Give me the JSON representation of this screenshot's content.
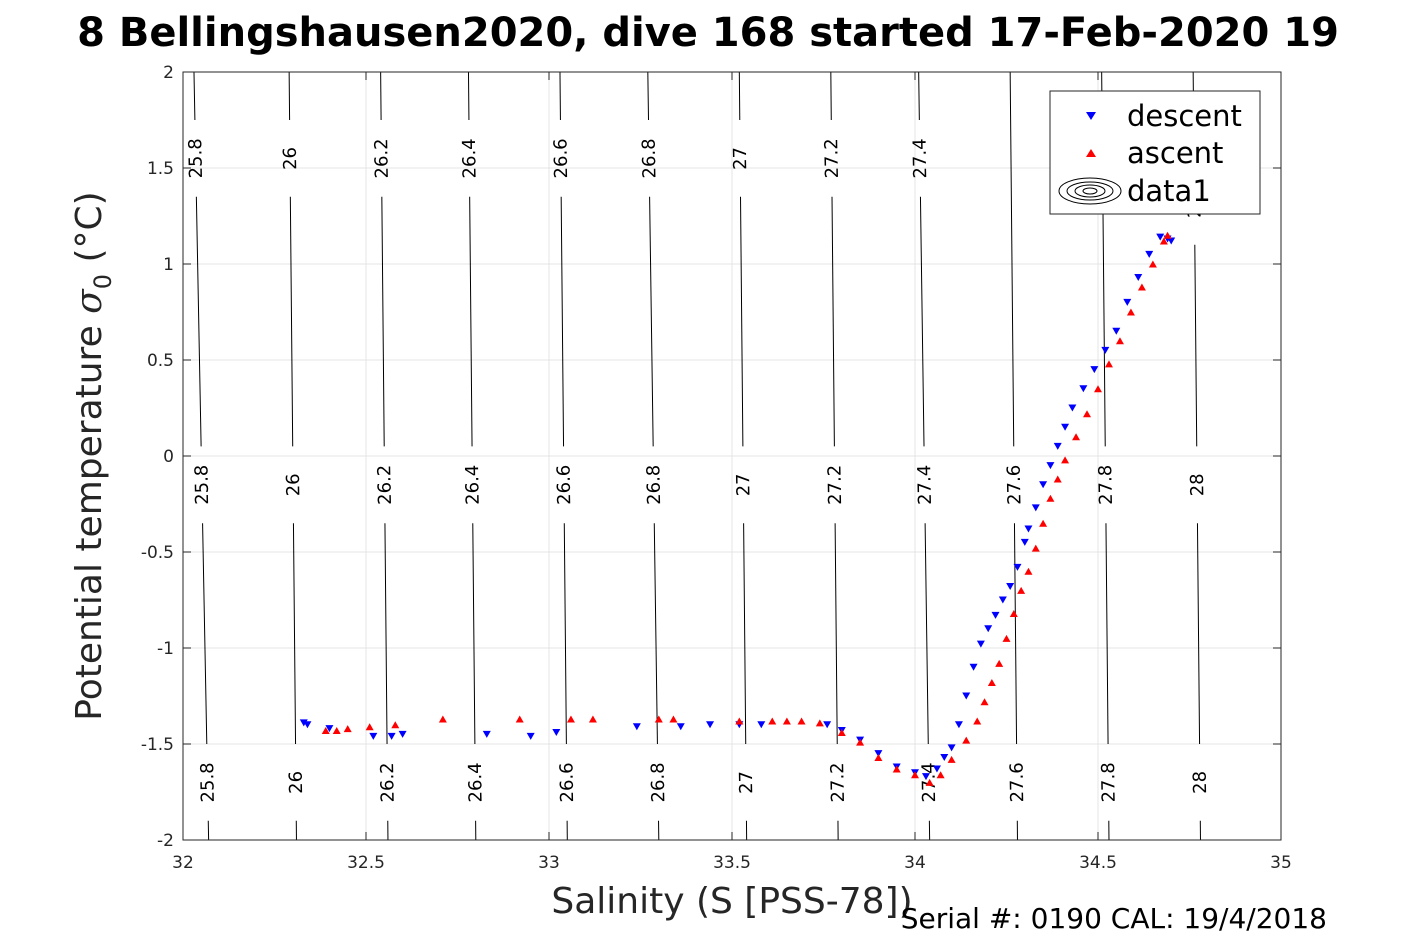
{
  "chart_data": {
    "type": "scatter",
    "title": "8 Bellingshausen2020, dive 168 started 17-Feb-2020 19",
    "xlabel": "Salinity (S [PSS-78])",
    "ylabel": "Potential temperature",
    "ylabel_symbol": "σ",
    "ylabel_subscript": "0",
    "ylabel_unit": "(°C)",
    "xlim": [
      32,
      35
    ],
    "ylim": [
      -2,
      2
    ],
    "xticks": [
      32,
      32.5,
      33,
      33.5,
      34,
      34.5,
      35
    ],
    "yticks": [
      2,
      1.5,
      1,
      0.5,
      0,
      -0.5,
      -1,
      -1.5,
      -2
    ],
    "xtick_labels": [
      "32",
      "32.5",
      "33",
      "33.5",
      "34",
      "34.5",
      "35"
    ],
    "ytick_labels": [
      "2",
      "1.5",
      "1",
      "0.5",
      "0",
      "-0.5",
      "-1",
      "-1.5",
      "-2"
    ],
    "grid": true,
    "legend_position": "top-right",
    "legend": [
      "descent",
      "ascent",
      "data1"
    ],
    "series": [
      {
        "name": "descent",
        "marker": "triangle-down",
        "color": "#0000ff",
        "points": [
          [
            32.33,
            -1.39
          ],
          [
            32.34,
            -1.4
          ],
          [
            32.4,
            -1.42
          ],
          [
            32.52,
            -1.46
          ],
          [
            32.57,
            -1.46
          ],
          [
            32.6,
            -1.45
          ],
          [
            32.83,
            -1.45
          ],
          [
            32.95,
            -1.46
          ],
          [
            33.02,
            -1.44
          ],
          [
            33.24,
            -1.41
          ],
          [
            33.36,
            -1.41
          ],
          [
            33.44,
            -1.4
          ],
          [
            33.52,
            -1.4
          ],
          [
            33.58,
            -1.4
          ],
          [
            33.76,
            -1.4
          ],
          [
            33.8,
            -1.43
          ],
          [
            33.85,
            -1.48
          ],
          [
            33.9,
            -1.55
          ],
          [
            33.95,
            -1.62
          ],
          [
            34.0,
            -1.65
          ],
          [
            34.03,
            -1.67
          ],
          [
            34.06,
            -1.63
          ],
          [
            34.08,
            -1.57
          ],
          [
            34.1,
            -1.52
          ],
          [
            34.12,
            -1.4
          ],
          [
            34.14,
            -1.25
          ],
          [
            34.16,
            -1.1
          ],
          [
            34.18,
            -0.98
          ],
          [
            34.2,
            -0.9
          ],
          [
            34.22,
            -0.83
          ],
          [
            34.24,
            -0.75
          ],
          [
            34.26,
            -0.68
          ],
          [
            34.28,
            -0.58
          ],
          [
            34.3,
            -0.45
          ],
          [
            34.31,
            -0.38
          ],
          [
            34.33,
            -0.27
          ],
          [
            34.35,
            -0.15
          ],
          [
            34.37,
            -0.05
          ],
          [
            34.39,
            0.05
          ],
          [
            34.41,
            0.15
          ],
          [
            34.43,
            0.25
          ],
          [
            34.46,
            0.35
          ],
          [
            34.49,
            0.45
          ],
          [
            34.52,
            0.55
          ],
          [
            34.55,
            0.65
          ],
          [
            34.58,
            0.8
          ],
          [
            34.61,
            0.93
          ],
          [
            34.64,
            1.05
          ],
          [
            34.67,
            1.14
          ],
          [
            34.69,
            1.13
          ],
          [
            34.7,
            1.12
          ]
        ]
      },
      {
        "name": "ascent",
        "marker": "triangle-up",
        "color": "#ff0000",
        "points": [
          [
            32.39,
            -1.43
          ],
          [
            32.42,
            -1.43
          ],
          [
            32.45,
            -1.42
          ],
          [
            32.51,
            -1.41
          ],
          [
            32.58,
            -1.4
          ],
          [
            32.71,
            -1.37
          ],
          [
            32.92,
            -1.37
          ],
          [
            33.06,
            -1.37
          ],
          [
            33.12,
            -1.37
          ],
          [
            33.3,
            -1.37
          ],
          [
            33.34,
            -1.37
          ],
          [
            33.52,
            -1.38
          ],
          [
            33.61,
            -1.38
          ],
          [
            33.65,
            -1.38
          ],
          [
            33.69,
            -1.38
          ],
          [
            33.74,
            -1.39
          ],
          [
            33.8,
            -1.44
          ],
          [
            33.85,
            -1.49
          ],
          [
            33.9,
            -1.57
          ],
          [
            33.95,
            -1.63
          ],
          [
            34.0,
            -1.66
          ],
          [
            34.04,
            -1.7
          ],
          [
            34.07,
            -1.66
          ],
          [
            34.1,
            -1.58
          ],
          [
            34.14,
            -1.48
          ],
          [
            34.17,
            -1.38
          ],
          [
            34.19,
            -1.28
          ],
          [
            34.21,
            -1.18
          ],
          [
            34.23,
            -1.08
          ],
          [
            34.25,
            -0.95
          ],
          [
            34.27,
            -0.82
          ],
          [
            34.29,
            -0.7
          ],
          [
            34.31,
            -0.6
          ],
          [
            34.33,
            -0.48
          ],
          [
            34.35,
            -0.35
          ],
          [
            34.37,
            -0.22
          ],
          [
            34.39,
            -0.12
          ],
          [
            34.41,
            -0.02
          ],
          [
            34.44,
            0.1
          ],
          [
            34.47,
            0.22
          ],
          [
            34.5,
            0.35
          ],
          [
            34.53,
            0.48
          ],
          [
            34.56,
            0.6
          ],
          [
            34.59,
            0.75
          ],
          [
            34.62,
            0.88
          ],
          [
            34.65,
            1.0
          ],
          [
            34.68,
            1.12
          ],
          [
            34.69,
            1.15
          ]
        ]
      }
    ],
    "isopycnals": {
      "levels": [
        "25.8",
        "26",
        "26.2",
        "26.4",
        "26.6",
        "26.8",
        "27",
        "27.2",
        "27.4",
        "27.6",
        "27.8",
        "28"
      ],
      "salinity_at_temp": [
        {
          "level": "25.8",
          "at_minus2": 32.07,
          "at_plus2": 32.03
        },
        {
          "level": "26",
          "at_minus2": 32.31,
          "at_plus2": 32.29
        },
        {
          "level": "26.2",
          "at_minus2": 32.56,
          "at_plus2": 32.54
        },
        {
          "level": "26.4",
          "at_minus2": 32.8,
          "at_plus2": 32.78
        },
        {
          "level": "26.6",
          "at_minus2": 33.05,
          "at_plus2": 33.03
        },
        {
          "level": "26.8",
          "at_minus2": 33.3,
          "at_plus2": 33.27
        },
        {
          "level": "27",
          "at_minus2": 33.54,
          "at_plus2": 33.52
        },
        {
          "level": "27.2",
          "at_minus2": 33.79,
          "at_plus2": 33.77
        },
        {
          "level": "27.4",
          "at_minus2": 34.04,
          "at_plus2": 34.01
        },
        {
          "level": "27.6",
          "at_minus2": 34.28,
          "at_plus2": 34.26
        },
        {
          "level": "27.8",
          "at_minus2": 34.53,
          "at_plus2": 34.51
        },
        {
          "level": "28",
          "at_minus2": 34.78,
          "at_plus2": 34.76
        }
      ],
      "label_rows": [
        {
          "temp": 1.55,
          "levels": [
            "25.8",
            "26",
            "26.2",
            "26.4",
            "26.6",
            "26.8",
            "27",
            "27.2",
            "27.4"
          ]
        },
        {
          "temp": -0.15,
          "levels": [
            "25.8",
            "26",
            "26.2",
            "26.4",
            "26.6",
            "26.8",
            "27",
            "27.2",
            "27.4",
            "27.6",
            "27.8",
            "28"
          ]
        },
        {
          "temp": -1.7,
          "levels": [
            "25.8",
            "26",
            "26.2",
            "26.4",
            "26.6",
            "26.8",
            "27",
            "27.2",
            "27.4",
            "27.6",
            "27.8",
            "28"
          ]
        }
      ],
      "edge_labels": [
        {
          "level": "28",
          "temp": 1.3
        }
      ]
    }
  },
  "footer": {
    "serial": "Serial #: 0190  CAL: 19/4/2018"
  }
}
